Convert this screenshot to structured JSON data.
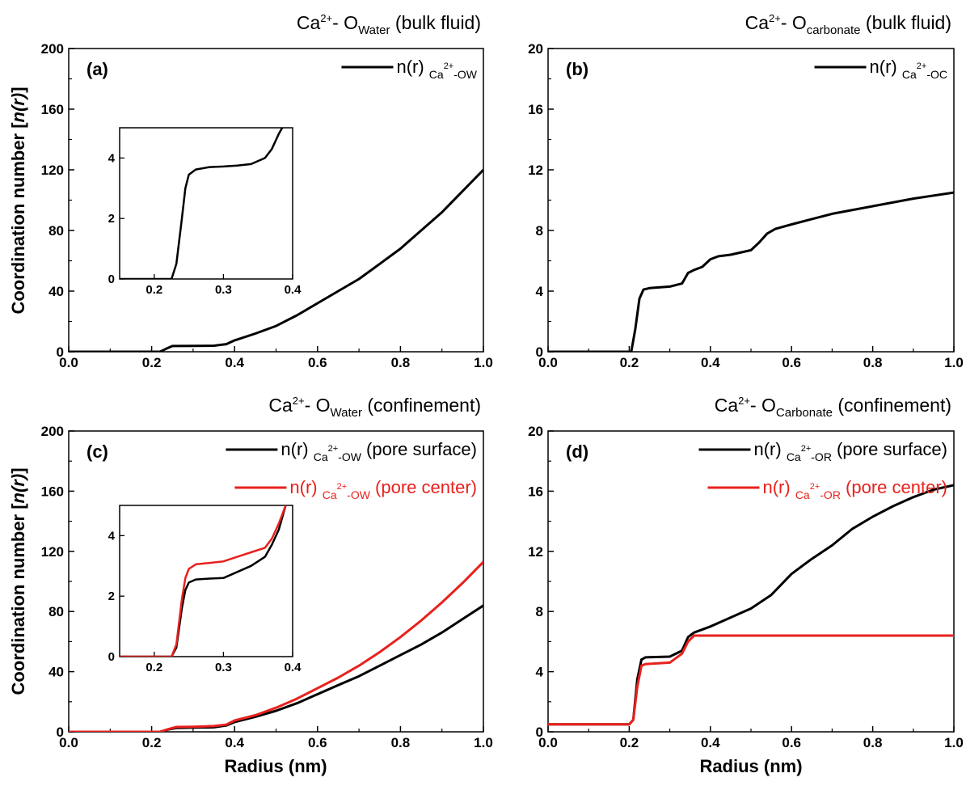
{
  "figure": {
    "y_axis_label": "Coordination number [n(r)]",
    "x_axis_label": "Radius (nm)"
  },
  "chart_data": [
    {
      "type": "line",
      "panel_label": "(a)",
      "title": {
        "ion": "Ca",
        "charge": "2+",
        "sep": "- O",
        "species": "Water",
        "context": " (bulk fluid)"
      },
      "ylabel": "Coordination number [n(r)]",
      "xlabel": "",
      "xlim": [
        0,
        1
      ],
      "ylim": [
        0,
        200
      ],
      "xticks": [
        "0.0",
        "0.2",
        "0.4",
        "0.6",
        "0.8",
        "1.0"
      ],
      "yticks": [
        "0",
        "40",
        "80",
        "120",
        "160",
        "200"
      ],
      "legend_position": "top-right",
      "series": [
        {
          "legend": {
            "prefix": "n(r) ",
            "sub1": "Ca",
            "sup": "2+",
            "sub2": "-OW",
            "suffix": ""
          },
          "color": "#000000",
          "x": [
            0.0,
            0.22,
            0.235,
            0.25,
            0.3,
            0.35,
            0.38,
            0.4,
            0.45,
            0.5,
            0.55,
            0.6,
            0.65,
            0.7,
            0.75,
            0.8,
            0.85,
            0.9,
            0.95,
            1.0
          ],
          "y": [
            0,
            0,
            2,
            3.8,
            3.9,
            4.0,
            5,
            7.5,
            12,
            17,
            24,
            32,
            40,
            48,
            58,
            68,
            80,
            92,
            106,
            120
          ]
        }
      ],
      "inset": {
        "xlim": [
          0.15,
          0.4
        ],
        "ylim": [
          0,
          5
        ],
        "xticks": [
          "0.2",
          "0.3",
          "0.4"
        ],
        "yticks": [
          "0",
          "2",
          "4"
        ],
        "series": [
          {
            "color": "#000000",
            "x": [
              0.15,
              0.225,
              0.232,
              0.24,
              0.245,
              0.25,
              0.26,
              0.28,
              0.3,
              0.32,
              0.34,
              0.36,
              0.37,
              0.38,
              0.385
            ],
            "y": [
              0,
              0,
              0.5,
              2.0,
              3.0,
              3.45,
              3.62,
              3.7,
              3.72,
              3.75,
              3.8,
              4.0,
              4.3,
              4.8,
              5.0
            ]
          }
        ]
      }
    },
    {
      "type": "line",
      "panel_label": "(b)",
      "title": {
        "ion": "Ca",
        "charge": "2+",
        "sep": "- O",
        "species": "carbonate",
        "context": " (bulk fluid)"
      },
      "ylabel": "",
      "xlabel": "",
      "xlim": [
        0,
        1
      ],
      "ylim": [
        0,
        20
      ],
      "xticks": [
        "0.0",
        "0.2",
        "0.4",
        "0.6",
        "0.8",
        "1.0"
      ],
      "yticks": [
        "0",
        "4",
        "8",
        "12",
        "16",
        "20"
      ],
      "legend_position": "top-right",
      "series": [
        {
          "legend": {
            "prefix": "n(r) ",
            "sub1": "Ca",
            "sup": "2+",
            "sub2": "-OC",
            "suffix": ""
          },
          "color": "#000000",
          "x": [
            0.0,
            0.205,
            0.215,
            0.225,
            0.235,
            0.25,
            0.3,
            0.33,
            0.345,
            0.36,
            0.38,
            0.4,
            0.42,
            0.45,
            0.5,
            0.52,
            0.54,
            0.56,
            0.6,
            0.7,
            0.8,
            0.9,
            1.0
          ],
          "y": [
            0,
            0,
            1.5,
            3.5,
            4.1,
            4.2,
            4.3,
            4.5,
            5.2,
            5.4,
            5.6,
            6.1,
            6.3,
            6.4,
            6.7,
            7.2,
            7.8,
            8.1,
            8.4,
            9.1,
            9.6,
            10.1,
            10.5
          ]
        }
      ]
    },
    {
      "type": "line",
      "panel_label": "(c)",
      "title": {
        "ion": "Ca",
        "charge": "2+",
        "sep": "- O",
        "species": "Water",
        "context": " (confinement)"
      },
      "ylabel": "Coordination number [n(r)]",
      "xlabel": "Radius (nm)",
      "xlim": [
        0,
        1
      ],
      "ylim": [
        0,
        200
      ],
      "xticks": [
        "0.0",
        "0.2",
        "0.4",
        "0.6",
        "0.8",
        "1.0"
      ],
      "yticks": [
        "0",
        "40",
        "80",
        "120",
        "160",
        "200"
      ],
      "legend_position": "top-right",
      "series": [
        {
          "legend": {
            "prefix": "n(r) ",
            "sub1": "Ca",
            "sup": "2+",
            "sub2": "-OW",
            "suffix": " (pore surface)"
          },
          "color": "#000000",
          "x": [
            0.0,
            0.22,
            0.24,
            0.26,
            0.3,
            0.35,
            0.38,
            0.4,
            0.45,
            0.5,
            0.55,
            0.6,
            0.65,
            0.7,
            0.75,
            0.8,
            0.85,
            0.9,
            0.95,
            1.0
          ],
          "y": [
            0,
            0,
            1.5,
            2.6,
            2.8,
            3.0,
            4.2,
            6.5,
            10,
            14,
            19,
            25,
            31,
            37,
            44,
            51,
            58,
            66,
            75,
            84
          ]
        },
        {
          "legend": {
            "prefix": "n(r) ",
            "sub1": "Ca",
            "sup": "2+",
            "sub2": "-OW",
            "suffix": " (pore center)"
          },
          "color": "#e8211d",
          "x": [
            0.0,
            0.22,
            0.24,
            0.26,
            0.3,
            0.35,
            0.38,
            0.4,
            0.45,
            0.5,
            0.55,
            0.6,
            0.65,
            0.7,
            0.75,
            0.8,
            0.85,
            0.9,
            0.95,
            1.0
          ],
          "y": [
            0,
            0,
            1.8,
            3.2,
            3.4,
            3.8,
            4.8,
            7.5,
            11,
            16,
            22,
            29,
            36,
            44,
            53,
            63,
            74,
            86,
            99,
            113
          ]
        }
      ],
      "inset": {
        "xlim": [
          0.15,
          0.4
        ],
        "ylim": [
          0,
          5
        ],
        "xticks": [
          "0.2",
          "0.3",
          "0.4"
        ],
        "yticks": [
          "0",
          "2",
          "4"
        ],
        "series": [
          {
            "color": "#000000",
            "x": [
              0.15,
              0.225,
              0.232,
              0.24,
              0.245,
              0.25,
              0.26,
              0.28,
              0.3,
              0.32,
              0.34,
              0.36,
              0.37,
              0.38,
              0.39
            ],
            "y": [
              0,
              0,
              0.3,
              1.6,
              2.2,
              2.45,
              2.55,
              2.58,
              2.6,
              2.8,
              3.0,
              3.3,
              3.7,
              4.2,
              5.0
            ]
          },
          {
            "color": "#e8211d",
            "x": [
              0.15,
              0.225,
              0.232,
              0.24,
              0.245,
              0.25,
              0.26,
              0.28,
              0.3,
              0.32,
              0.34,
              0.36,
              0.37,
              0.38,
              0.39
            ],
            "y": [
              0,
              0,
              0.4,
              1.9,
              2.6,
              2.9,
              3.05,
              3.1,
              3.15,
              3.3,
              3.45,
              3.6,
              3.9,
              4.4,
              5.0
            ]
          }
        ]
      }
    },
    {
      "type": "line",
      "panel_label": "(d)",
      "title": {
        "ion": "Ca",
        "charge": "2+",
        "sep": "- O",
        "species": "Carbonate",
        "context": " (confinement)"
      },
      "ylabel": "",
      "xlabel": "Radius (nm)",
      "xlim": [
        0,
        1
      ],
      "ylim": [
        0,
        20
      ],
      "xticks": [
        "0.0",
        "0.2",
        "0.4",
        "0.6",
        "0.8",
        "1.0"
      ],
      "yticks": [
        "0",
        "4",
        "8",
        "12",
        "16",
        "20"
      ],
      "legend_position": "top-right",
      "series": [
        {
          "legend": {
            "prefix": "n(r) ",
            "sub1": "Ca",
            "sup": "2+",
            "sub2": "-OR",
            "suffix": " (pore surface)"
          },
          "color": "#000000",
          "x": [
            0.0,
            0.2,
            0.21,
            0.22,
            0.23,
            0.24,
            0.3,
            0.33,
            0.345,
            0.36,
            0.4,
            0.45,
            0.5,
            0.55,
            0.6,
            0.65,
            0.7,
            0.75,
            0.8,
            0.85,
            0.9,
            0.95,
            1.0
          ],
          "y": [
            0.5,
            0.5,
            0.8,
            3.5,
            4.8,
            4.95,
            5.0,
            5.4,
            6.3,
            6.6,
            7.0,
            7.6,
            8.2,
            9.1,
            10.5,
            11.5,
            12.4,
            13.5,
            14.3,
            15.0,
            15.6,
            16.1,
            16.4
          ]
        },
        {
          "legend": {
            "prefix": "n(r) ",
            "sub1": "Ca",
            "sup": "2+",
            "sub2": "-OR",
            "suffix": " (pore center)"
          },
          "color": "#e8211d",
          "x": [
            0.0,
            0.2,
            0.21,
            0.22,
            0.23,
            0.24,
            0.3,
            0.33,
            0.345,
            0.36,
            0.4,
            0.5,
            0.6,
            0.7,
            0.8,
            0.9,
            1.0
          ],
          "y": [
            0.5,
            0.5,
            0.8,
            3.0,
            4.4,
            4.5,
            4.6,
            5.2,
            6.0,
            6.4,
            6.4,
            6.4,
            6.4,
            6.4,
            6.4,
            6.4,
            6.4
          ]
        }
      ]
    }
  ]
}
